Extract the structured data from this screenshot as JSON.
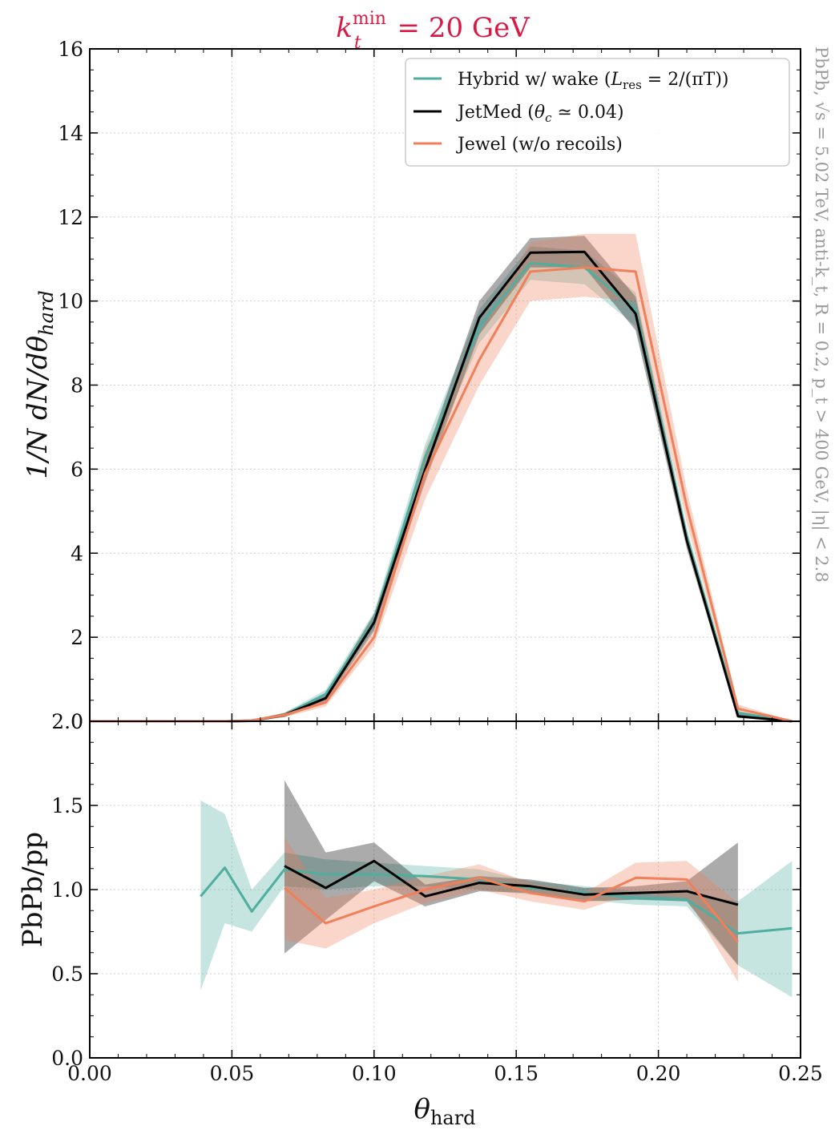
{
  "chart_data": [
    {
      "type": "line",
      "panel": "main",
      "title": "k_t^min = 20 GeV",
      "title_parts": {
        "k": "k",
        "sup": "min",
        "sub": "t",
        "rest": " = 20 GeV"
      },
      "ylabel": "1/N dN/dθ_hard",
      "ylabel_parts": {
        "main": "1/N dN/dθ",
        "sub": "hard"
      },
      "side_annotation": "PbPb, √s = 5.02 TeV, anti-k_t, R = 0.2, p_t > 400 GeV, |η| < 2.8",
      "xlim": [
        0.0,
        0.25
      ],
      "ylim": [
        0,
        16
      ],
      "yticks": [
        "0",
        "2",
        "4",
        "6",
        "8",
        "10",
        "12",
        "14",
        "16"
      ],
      "grid": true,
      "legend_position": "top-right",
      "x": [
        0.0,
        0.0125,
        0.0235,
        0.03,
        0.04,
        0.048,
        0.057,
        0.0685,
        0.083,
        0.1,
        0.118,
        0.137,
        0.155,
        0.174,
        0.192,
        0.21,
        0.228,
        0.247
      ],
      "series": [
        {
          "name": "Hybrid w/ wake (L_res = 2/(πT))",
          "legend_parts": {
            "pre": "Hybrid w/ wake (",
            "L": "L",
            "sub": "res",
            "post": " = 2/(πT))"
          },
          "color": "#4fae9f",
          "values": [
            0,
            0,
            0,
            0,
            0,
            0,
            0.02,
            0.15,
            0.65,
            2.4,
            6.3,
            9.4,
            10.9,
            10.8,
            9.8,
            4.4,
            0.2,
            0.0
          ],
          "band_low": [
            0,
            0,
            0,
            0,
            0,
            0,
            0.0,
            0.1,
            0.55,
            2.2,
            6.0,
            9.0,
            10.5,
            10.4,
            9.4,
            4.2,
            0.15,
            0.0
          ],
          "band_high": [
            0,
            0,
            0,
            0,
            0,
            0,
            0.04,
            0.2,
            0.75,
            2.6,
            6.6,
            9.8,
            11.3,
            11.2,
            10.2,
            4.6,
            0.25,
            0.0
          ]
        },
        {
          "name": "JetMed (θ_c ≃ 0.04)",
          "legend_parts": {
            "pre": "JetMed (",
            "L": "θ",
            "sub": "c",
            "post": " ≃ 0.04)"
          },
          "color": "#000000",
          "values": [
            0,
            0,
            0,
            0,
            0,
            0,
            0.01,
            0.15,
            0.55,
            2.35,
            6.0,
            9.6,
            11.15,
            11.17,
            9.7,
            4.3,
            0.12,
            0.0
          ],
          "band_low": [
            0,
            0,
            0,
            0,
            0,
            0,
            0.0,
            0.1,
            0.45,
            2.15,
            5.7,
            9.2,
            10.8,
            10.8,
            9.3,
            4.1,
            0.08,
            0.0
          ],
          "band_high": [
            0,
            0,
            0,
            0,
            0,
            0,
            0.03,
            0.2,
            0.65,
            2.55,
            6.3,
            10.0,
            11.5,
            11.55,
            10.1,
            4.5,
            0.18,
            0.0
          ]
        },
        {
          "name": "Jewel (w/o recoils)",
          "legend_parts": {
            "pre": "Jewel (w/o recoils)",
            "L": "",
            "sub": "",
            "post": ""
          },
          "color": "#f07f5a",
          "values": [
            0,
            0,
            0,
            0,
            0,
            0,
            0.02,
            0.15,
            0.45,
            2.0,
            5.9,
            8.6,
            10.7,
            10.8,
            10.7,
            5.1,
            0.3,
            0.0
          ],
          "band_low": [
            0,
            0,
            0,
            0,
            0,
            0,
            0.0,
            0.1,
            0.35,
            1.8,
            5.3,
            8.0,
            10.0,
            10.1,
            10.0,
            4.7,
            0.2,
            0.0
          ],
          "band_high": [
            0,
            0,
            0,
            0,
            0,
            0,
            0.04,
            0.2,
            0.55,
            2.2,
            6.5,
            9.2,
            11.4,
            11.6,
            11.6,
            5.5,
            0.4,
            0.0
          ]
        }
      ]
    },
    {
      "type": "line",
      "panel": "ratio",
      "ylabel": "PbPb/pp",
      "xlabel": "θ_hard",
      "xlabel_parts": {
        "main": "θ",
        "sub": "hard"
      },
      "xlim": [
        0.0,
        0.25
      ],
      "ylim": [
        0.0,
        2.0
      ],
      "xticks": [
        "0.00",
        "0.05",
        "0.10",
        "0.15",
        "0.20",
        "0.25"
      ],
      "yticks": [
        "0.0",
        "0.5",
        "1.0",
        "1.5",
        "2.0"
      ],
      "grid": true,
      "series": [
        {
          "name": "Hybrid w/ wake",
          "color": "#4fae9f",
          "x": [
            0.039,
            0.0475,
            0.057,
            0.0685,
            0.083,
            0.1,
            0.118,
            0.137,
            0.155,
            0.174,
            0.192,
            0.21,
            0.228,
            0.247
          ],
          "values": [
            0.96,
            1.13,
            0.87,
            1.12,
            1.09,
            1.09,
            1.08,
            1.06,
            1.01,
            0.98,
            0.95,
            0.94,
            0.74,
            0.77
          ],
          "band_low": [
            0.4,
            0.8,
            0.75,
            1.02,
            1.0,
            1.02,
            1.02,
            1.0,
            0.97,
            0.94,
            0.91,
            0.9,
            0.55,
            0.36
          ],
          "band_high": [
            1.53,
            1.45,
            1.0,
            1.22,
            1.18,
            1.16,
            1.14,
            1.12,
            1.05,
            1.02,
            0.99,
            0.98,
            0.93,
            1.17
          ]
        },
        {
          "name": "JetMed",
          "color": "#000000",
          "x": [
            0.0685,
            0.083,
            0.1,
            0.118,
            0.137,
            0.155,
            0.174,
            0.192,
            0.21,
            0.228
          ],
          "values": [
            1.14,
            1.01,
            1.17,
            0.96,
            1.04,
            1.02,
            0.97,
            0.98,
            0.99,
            0.91
          ],
          "band_low": [
            0.62,
            0.82,
            1.05,
            0.9,
            0.99,
            0.98,
            0.93,
            0.94,
            0.93,
            0.55
          ],
          "band_high": [
            1.65,
            1.22,
            1.28,
            1.03,
            1.08,
            1.06,
            1.01,
            1.02,
            1.05,
            1.28
          ]
        },
        {
          "name": "Jewel",
          "color": "#f07f5a",
          "x": [
            0.0685,
            0.083,
            0.1,
            0.118,
            0.137,
            0.155,
            0.174,
            0.192,
            0.21,
            0.228
          ],
          "values": [
            1.01,
            0.8,
            0.9,
            1.0,
            1.07,
            0.98,
            0.93,
            1.07,
            1.06,
            0.69
          ],
          "band_low": [
            0.7,
            0.65,
            0.8,
            0.92,
            1.0,
            0.93,
            0.88,
            0.98,
            0.95,
            0.45
          ],
          "band_high": [
            1.31,
            0.95,
            1.0,
            1.08,
            1.15,
            1.04,
            0.98,
            1.16,
            1.17,
            0.92
          ]
        }
      ]
    }
  ]
}
